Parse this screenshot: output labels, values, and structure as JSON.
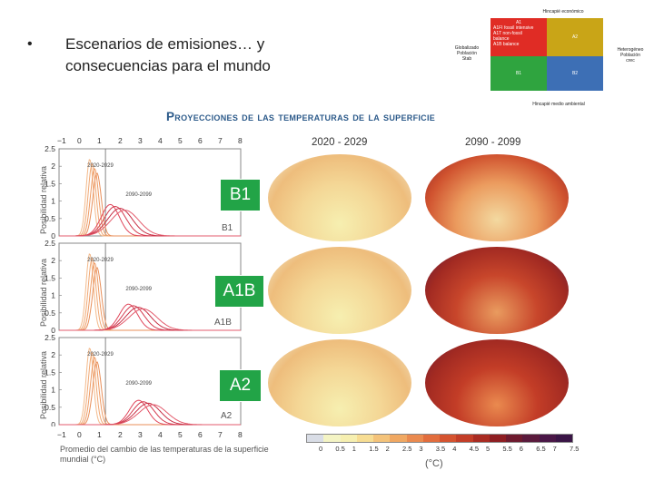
{
  "slide": {
    "bullet": "•",
    "title": "Escenarios de emisiones… y consecuencias para el mundo"
  },
  "quadrant": {
    "top_label": "Hincapié económico",
    "bottom_label": "Hincapié medio ambiental",
    "left_label": "Globalizado\nPoblación\nStab",
    "right_label": "Heterogéneo\nPoblación\ncrec",
    "a1_header": "A1",
    "a1_lines": [
      "A1FI fossil intensive",
      "A1T non-fossil",
      "balance",
      "A1B balance"
    ],
    "a2": "A2",
    "b1": "B1",
    "b2": "B2",
    "colors": {
      "a1": "#e02c25",
      "a2": "#c9a517",
      "b1": "#2fa43f",
      "b2": "#3d6fb5"
    }
  },
  "figure": {
    "title": "Proyecciones de las temperaturas de la superficie",
    "period1": "2020 - 2029",
    "period2": "2090 - 2099",
    "x_ticks": [
      "−1",
      "0",
      "1",
      "2",
      "3",
      "4",
      "5",
      "6",
      "7",
      "8"
    ],
    "y_ticks": [
      "2.5",
      "2",
      "1.5",
      "1",
      "0.5",
      "0"
    ],
    "panels": [
      {
        "ylabel": "Posibilidad relativa",
        "scenario": "B1",
        "label_p1": "2020-2029",
        "label_p2": "2090-2099"
      },
      {
        "ylabel": "Posibilidad relativa",
        "scenario": "A1B",
        "label_p1": "2020-2029",
        "label_p2": "2090-2099"
      },
      {
        "ylabel": "Posibilidad relativa",
        "scenario": "A2",
        "label_p1": "2020-2029",
        "label_p2": "2090-2099"
      }
    ],
    "xaxis_ticks": [
      "−1",
      "0",
      "1",
      "2",
      "3",
      "4",
      "5",
      "6",
      "7",
      "8"
    ],
    "xlabel": "Promedio del cambio de las temperaturas de la superficie mundial (°C)",
    "colorbar_ticks": [
      "0",
      "0.5",
      "1",
      "1.5",
      "2",
      "2.5",
      "3",
      "3.5",
      "4",
      "4.5",
      "5",
      "5.5",
      "6",
      "6.5",
      "7",
      "7.5"
    ],
    "colorbar_unit": "(°C)",
    "colorbar_colors": [
      "#d9dde6",
      "#f4f4c4",
      "#f6efb0",
      "#f7dd93",
      "#f4c37a",
      "#f0a862",
      "#ea8a4f",
      "#e26d3d",
      "#d5532f",
      "#c33d27",
      "#a92b22",
      "#8e1e22",
      "#6e1a2e",
      "#5a1a3c",
      "#4a1747",
      "#3a1546"
    ]
  },
  "chart_data": [
    {
      "type": "line",
      "title": "",
      "xlabel": "Promedio del cambio de las temperaturas de la superficie mundial (°C)",
      "ylabel": "Posibilidad relativa",
      "xlim": [
        -1,
        8
      ],
      "ylim": [
        0,
        2.5
      ],
      "series": [
        {
          "name": "2020-2029",
          "peak_x": 0.7,
          "peak_y": 2.2
        },
        {
          "name": "2090-2099",
          "peak_x": 1.9,
          "peak_y": 0.9
        }
      ]
    },
    {
      "type": "line",
      "title": "",
      "xlabel": "Promedio del cambio de las temperaturas de la superficie mundial (°C)",
      "ylabel": "Posibilidad relativa",
      "xlim": [
        -1,
        8
      ],
      "ylim": [
        0,
        2.5
      ],
      "series": [
        {
          "name": "2020-2029",
          "peak_x": 0.7,
          "peak_y": 2.2
        },
        {
          "name": "2090-2099",
          "peak_x": 2.8,
          "peak_y": 0.75
        }
      ]
    },
    {
      "type": "line",
      "title": "",
      "xlabel": "Promedio del cambio de las temperaturas de la superficie mundial (°C)",
      "ylabel": "Posibilidad relativa",
      "xlim": [
        -1,
        8
      ],
      "ylim": [
        0,
        2.5
      ],
      "series": [
        {
          "name": "2020-2029",
          "peak_x": 0.7,
          "peak_y": 2.2
        },
        {
          "name": "2090-2099",
          "peak_x": 3.3,
          "peak_y": 0.7
        }
      ]
    }
  ]
}
